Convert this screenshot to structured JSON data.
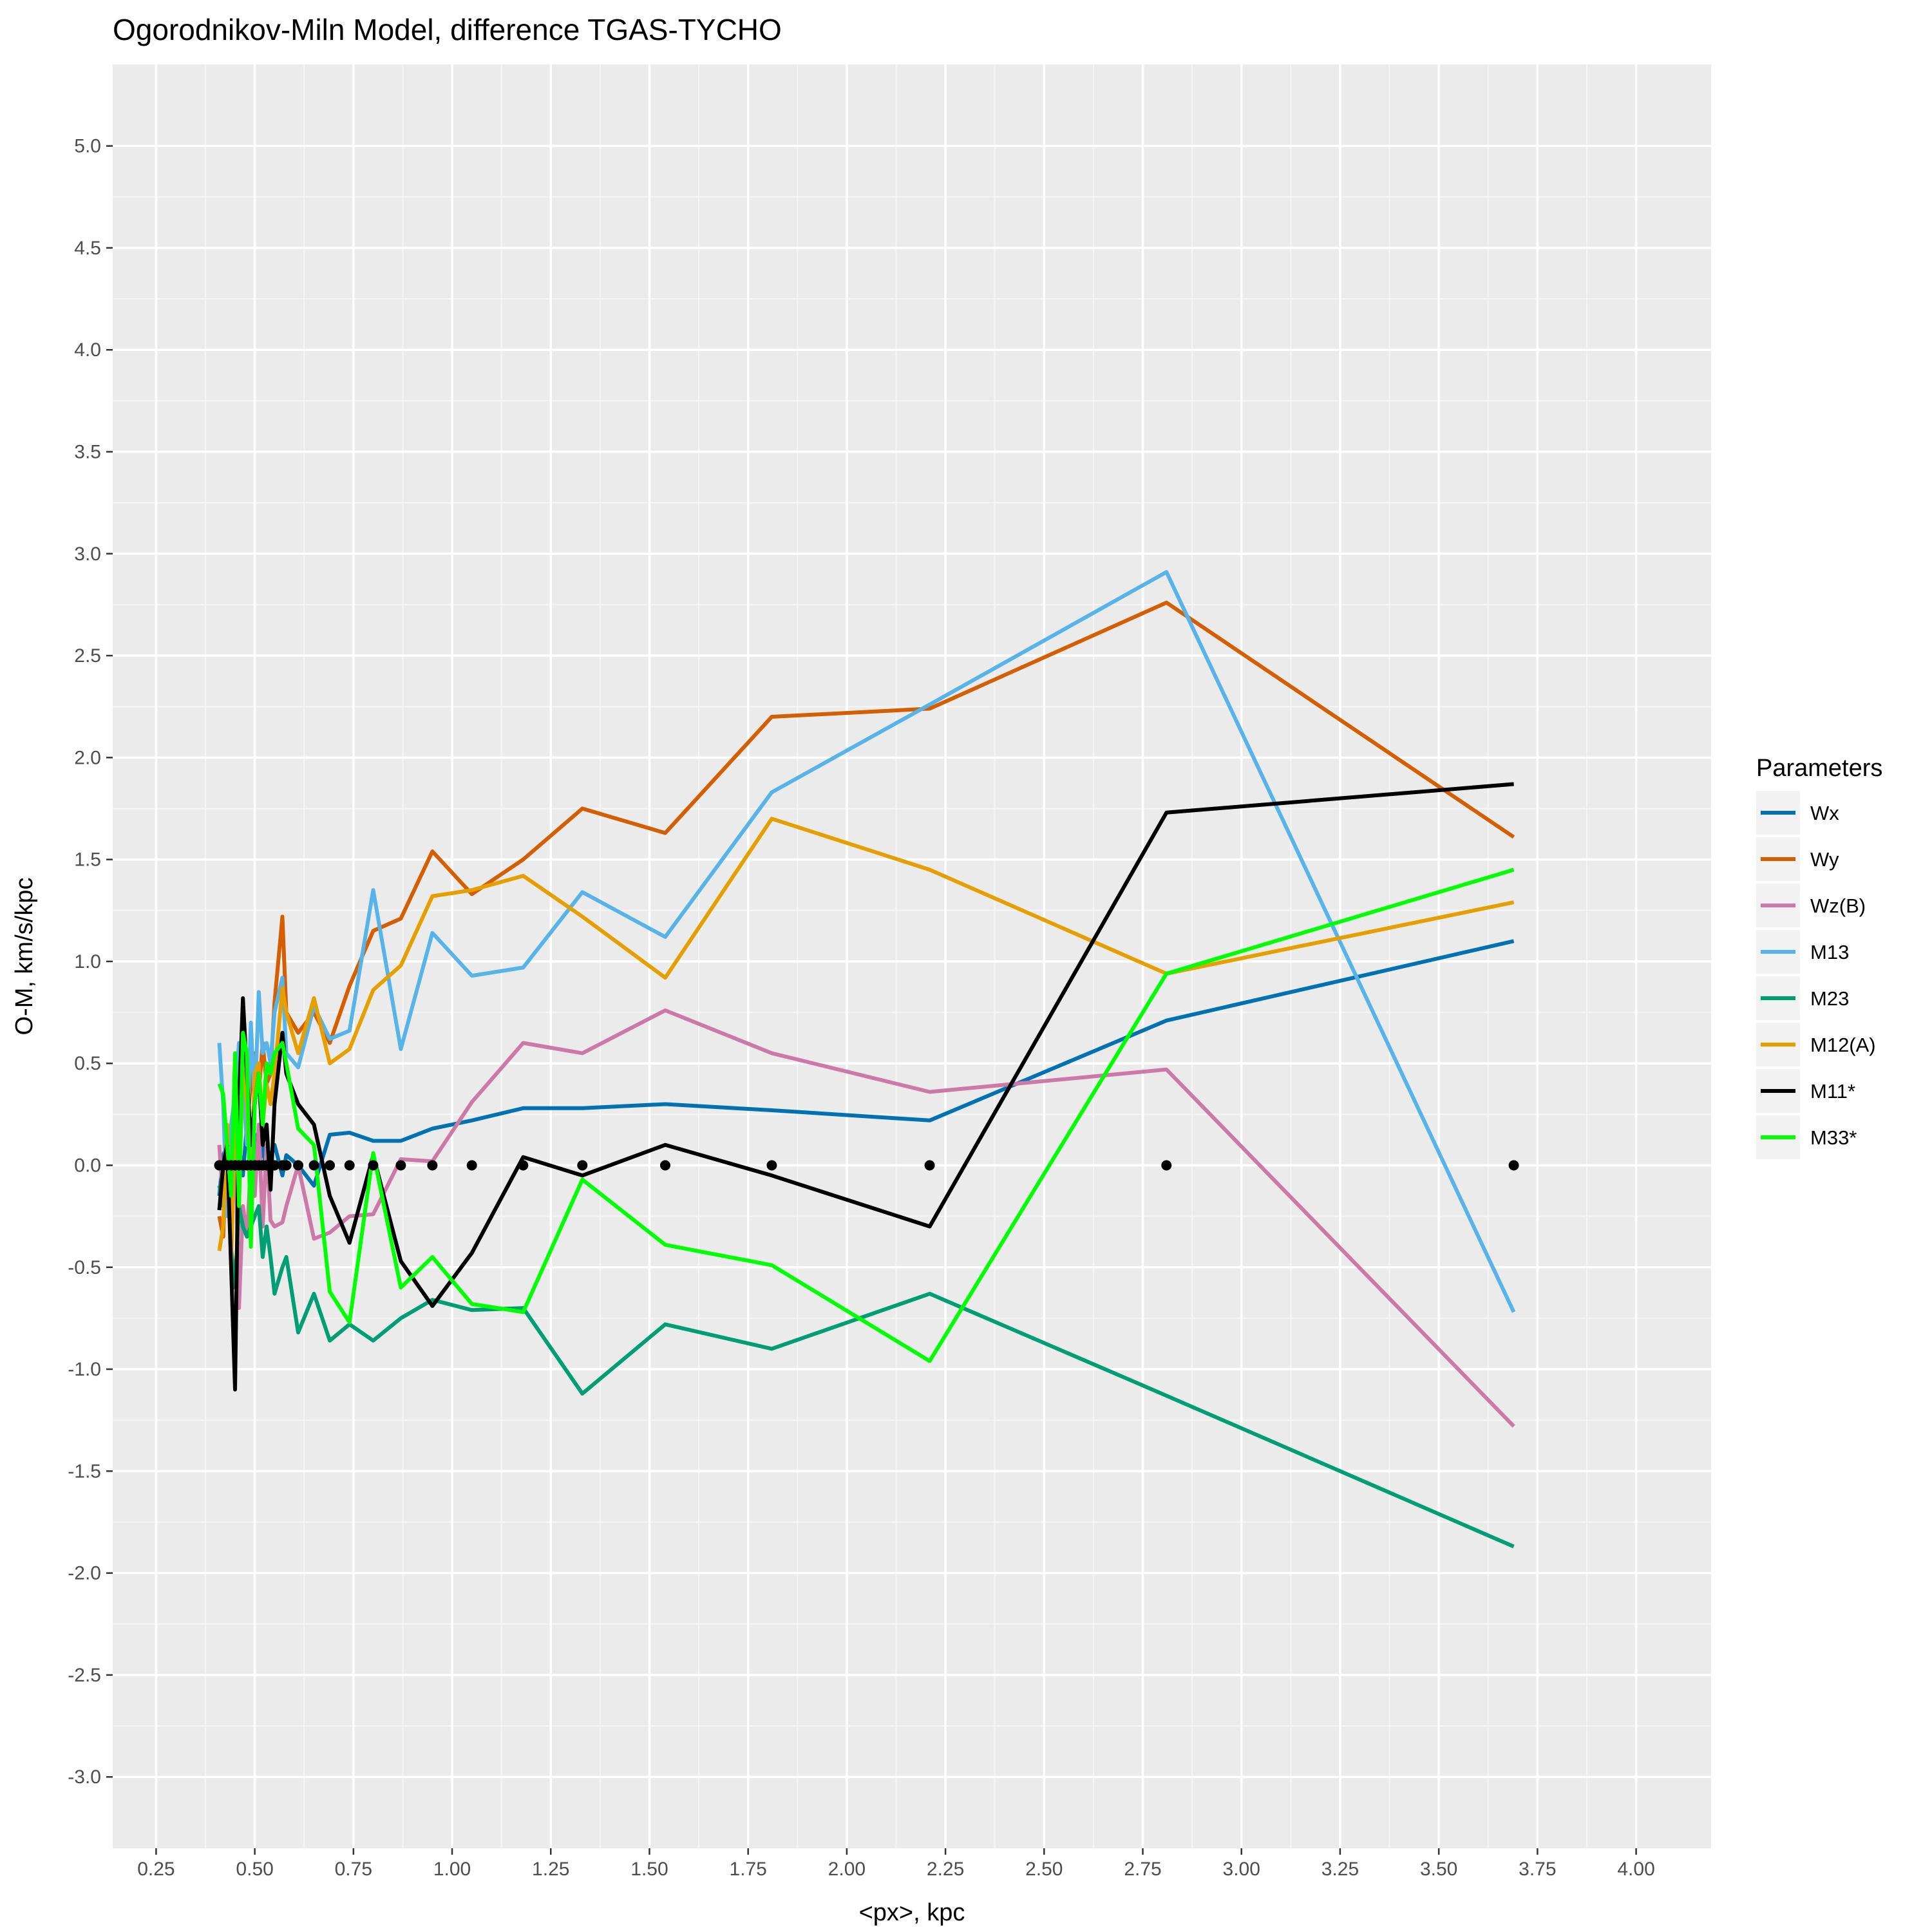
{
  "chart_data": {
    "type": "line",
    "title": "Ogorodnikov-Miln Model, difference TGAS-TYCHO",
    "xlabel": "<px>, kpc",
    "ylabel": "O-M, km/s/kpc",
    "xlim": [
      0.14,
      4.19
    ],
    "ylim": [
      -3.35,
      5.4
    ],
    "x_ticks": [
      0.25,
      0.5,
      0.75,
      1.0,
      1.25,
      1.5,
      1.75,
      2.0,
      2.25,
      2.5,
      2.75,
      3.0,
      3.25,
      3.5,
      3.75,
      4.0
    ],
    "x_tick_labels": [
      "0.25",
      "0.50",
      "0.75",
      "1.00",
      "1.25",
      "1.50",
      "1.75",
      "2.00",
      "2.25",
      "2.50",
      "2.75",
      "3.00",
      "3.25",
      "3.50",
      "3.75",
      "4.00"
    ],
    "y_ticks": [
      -3.0,
      -2.5,
      -2.0,
      -1.5,
      -1.0,
      -0.5,
      0.0,
      0.5,
      1.0,
      1.5,
      2.0,
      2.5,
      3.0,
      3.5,
      4.0,
      4.5,
      5.0
    ],
    "y_tick_labels": [
      "-3.0",
      "-2.5",
      "-2.0",
      "-1.5",
      "-1.0",
      "-0.5",
      "0.0",
      "0.5",
      "1.0",
      "1.5",
      "2.0",
      "2.5",
      "3.0",
      "3.5",
      "4.0",
      "4.5",
      "5.0"
    ],
    "grid": true,
    "background": "#ebebeb",
    "legend_title": "Parameters",
    "legend_position": "right",
    "x": [
      0.41,
      0.42,
      0.43,
      0.44,
      0.45,
      0.46,
      0.47,
      0.48,
      0.49,
      0.5,
      0.51,
      0.52,
      0.53,
      0.54,
      0.55,
      0.57,
      0.58,
      0.61,
      0.65,
      0.69,
      0.74,
      0.8,
      0.87,
      0.95,
      1.05,
      1.18,
      1.33,
      1.54,
      1.81,
      2.21,
      2.81,
      3.69
    ],
    "series": [
      {
        "name": "Wx",
        "color": "#0072b2",
        "values": [
          -0.15,
          0.05,
          0.1,
          -0.1,
          0.3,
          0.1,
          -0.05,
          0.2,
          -0.05,
          0.15,
          0.0,
          0.1,
          -0.05,
          0.05,
          0.1,
          -0.05,
          0.05,
          0.0,
          -0.1,
          0.15,
          0.16,
          0.12,
          0.12,
          0.18,
          0.22,
          0.28,
          0.28,
          0.3,
          0.27,
          0.22,
          0.71,
          1.1
        ]
      },
      {
        "name": "Wy",
        "color": "#d55e00",
        "values": [
          -0.25,
          -0.35,
          0.15,
          -0.3,
          0.5,
          0.1,
          0.6,
          0.2,
          0.4,
          0.55,
          0.35,
          0.6,
          0.4,
          0.45,
          0.8,
          1.22,
          0.75,
          0.65,
          0.75,
          0.6,
          0.88,
          1.15,
          1.21,
          1.54,
          1.33,
          1.5,
          1.75,
          1.63,
          2.2,
          2.24,
          2.76,
          1.61
        ]
      },
      {
        "name": "Wz(B)",
        "color": "#cc79a7",
        "values": [
          0.1,
          -0.2,
          0.2,
          -0.4,
          0.2,
          -0.7,
          -0.2,
          -0.35,
          0.0,
          -0.15,
          0.2,
          -0.3,
          0.1,
          -0.27,
          -0.3,
          -0.28,
          -0.2,
          0.0,
          -0.36,
          -0.33,
          -0.25,
          -0.24,
          0.03,
          0.02,
          0.31,
          0.6,
          0.55,
          0.76,
          0.55,
          0.36,
          0.47,
          -1.28
        ]
      },
      {
        "name": "M13",
        "color": "#56b4e9",
        "values": [
          0.6,
          0.3,
          -0.25,
          0.2,
          0.35,
          0.6,
          0.4,
          0.1,
          0.7,
          0.3,
          0.85,
          0.55,
          0.6,
          0.5,
          0.75,
          0.92,
          0.55,
          0.48,
          0.78,
          0.62,
          0.66,
          1.35,
          0.57,
          1.14,
          0.93,
          0.97,
          1.34,
          1.12,
          1.83,
          2.26,
          2.91,
          -0.72
        ]
      },
      {
        "name": "M23",
        "color": "#009e73",
        "values": [
          -0.1,
          -0.2,
          0.1,
          -0.4,
          -0.6,
          -0.2,
          -0.3,
          -0.35,
          -0.3,
          -0.25,
          -0.2,
          -0.45,
          -0.3,
          -0.45,
          -0.63,
          -0.5,
          -0.45,
          -0.82,
          -0.63,
          -0.86,
          -0.78,
          -0.86,
          -0.75,
          -0.66,
          -0.71,
          -0.7,
          -1.12,
          -0.78,
          -0.9,
          -0.63,
          -1.13,
          -1.87
        ]
      },
      {
        "name": "M12(A)",
        "color": "#e69f00",
        "values": [
          -0.42,
          -0.3,
          0.2,
          -0.5,
          0.3,
          -0.2,
          0.55,
          0.3,
          -0.15,
          0.45,
          0.5,
          0.2,
          0.4,
          0.3,
          0.45,
          0.87,
          0.75,
          0.55,
          0.82,
          0.5,
          0.57,
          0.86,
          0.98,
          1.32,
          1.35,
          1.42,
          1.22,
          0.92,
          1.7,
          1.45,
          0.94,
          1.29
        ]
      },
      {
        "name": "M11*",
        "color": "#000000",
        "values": [
          -0.22,
          0.0,
          0.1,
          -0.5,
          -1.1,
          0.3,
          0.82,
          0.45,
          0.1,
          0.3,
          0.45,
          0.1,
          0.2,
          -0.12,
          0.3,
          0.65,
          0.45,
          0.3,
          0.2,
          -0.15,
          -0.38,
          0.05,
          -0.47,
          -0.69,
          -0.43,
          0.04,
          -0.05,
          0.1,
          -0.05,
          -0.3,
          1.73,
          1.87
        ]
      },
      {
        "name": "M33*",
        "color": "#00ff00",
        "values": [
          0.4,
          0.35,
          0.1,
          -0.15,
          0.55,
          -0.2,
          0.65,
          0.55,
          -0.4,
          0.3,
          0.45,
          0.2,
          0.5,
          0.45,
          0.55,
          0.6,
          0.5,
          0.18,
          0.1,
          -0.62,
          -0.77,
          0.06,
          -0.6,
          -0.45,
          -0.68,
          -0.72,
          -0.07,
          -0.39,
          -0.49,
          -0.96,
          0.94,
          1.45
        ]
      }
    ],
    "points": {
      "color": "#000000",
      "x": [
        0.41,
        0.42,
        0.43,
        0.44,
        0.45,
        0.46,
        0.47,
        0.48,
        0.49,
        0.5,
        0.51,
        0.52,
        0.53,
        0.54,
        0.55,
        0.57,
        0.58,
        0.61,
        0.65,
        0.69,
        0.74,
        0.8,
        0.87,
        0.95,
        1.05,
        1.18,
        1.33,
        1.54,
        1.81,
        2.21,
        2.81,
        3.69
      ],
      "y": [
        0,
        0,
        0,
        0,
        0,
        0,
        0,
        0,
        0,
        0,
        0,
        0,
        0,
        0,
        0,
        0,
        0,
        0,
        0,
        0,
        0,
        0,
        0,
        0,
        0,
        0,
        0,
        0,
        0,
        0,
        0,
        0
      ]
    }
  }
}
